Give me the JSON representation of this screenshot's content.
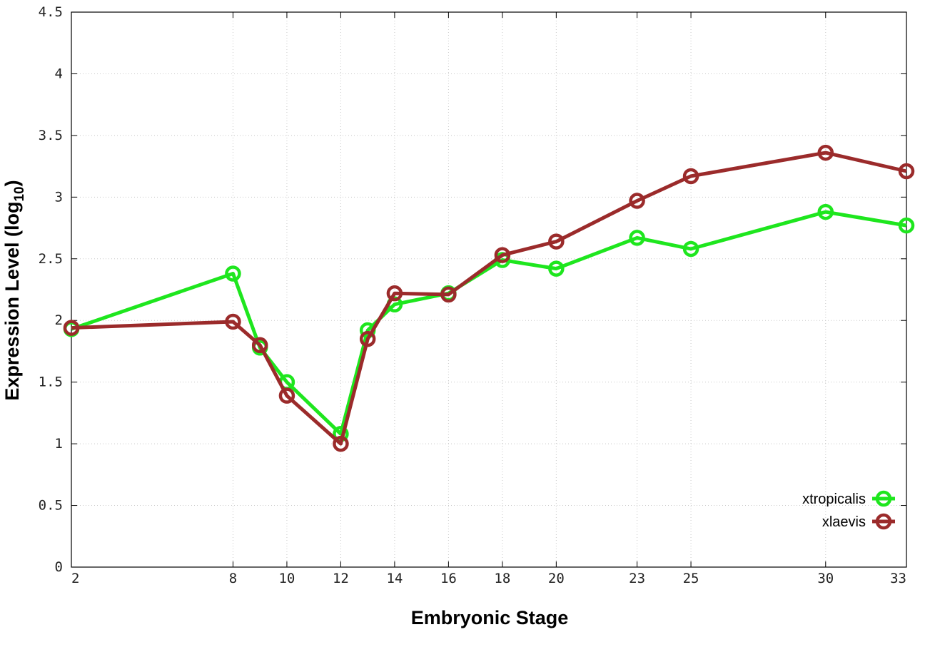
{
  "chart_data": {
    "type": "line",
    "xlabel": "Embryonic Stage",
    "ylabel": "Expression Level (log",
    "ylabel_sub": "10",
    "ylabel_close": ")",
    "x_ticks": [
      2,
      8,
      10,
      12,
      14,
      16,
      18,
      20,
      23,
      25,
      30,
      33
    ],
    "y_ticks": [
      "0",
      "0.5",
      "1",
      "1.5",
      "2",
      "2.5",
      "3",
      "3.5",
      "4",
      "4.5"
    ],
    "xlim": [
      2,
      33
    ],
    "ylim": [
      0,
      4.5
    ],
    "grid": true,
    "legend_position": "bottom-right",
    "series": [
      {
        "name": "xtropicalis",
        "color": "#1ee61e",
        "x": [
          2,
          8,
          9,
          10,
          12,
          13,
          14,
          16,
          18,
          20,
          23,
          25,
          30,
          33
        ],
        "y": [
          1.93,
          2.38,
          1.78,
          1.5,
          1.08,
          1.92,
          2.13,
          2.22,
          2.49,
          2.42,
          2.67,
          2.58,
          2.88,
          2.77
        ]
      },
      {
        "name": "xlaevis",
        "color": "#9b2b2b",
        "x": [
          2,
          8,
          9,
          10,
          12,
          13,
          14,
          16,
          18,
          20,
          23,
          25,
          30,
          33
        ],
        "y": [
          1.94,
          1.99,
          1.8,
          1.39,
          1.0,
          1.85,
          2.22,
          2.21,
          2.53,
          2.64,
          2.97,
          3.17,
          3.36,
          3.21
        ]
      }
    ]
  }
}
